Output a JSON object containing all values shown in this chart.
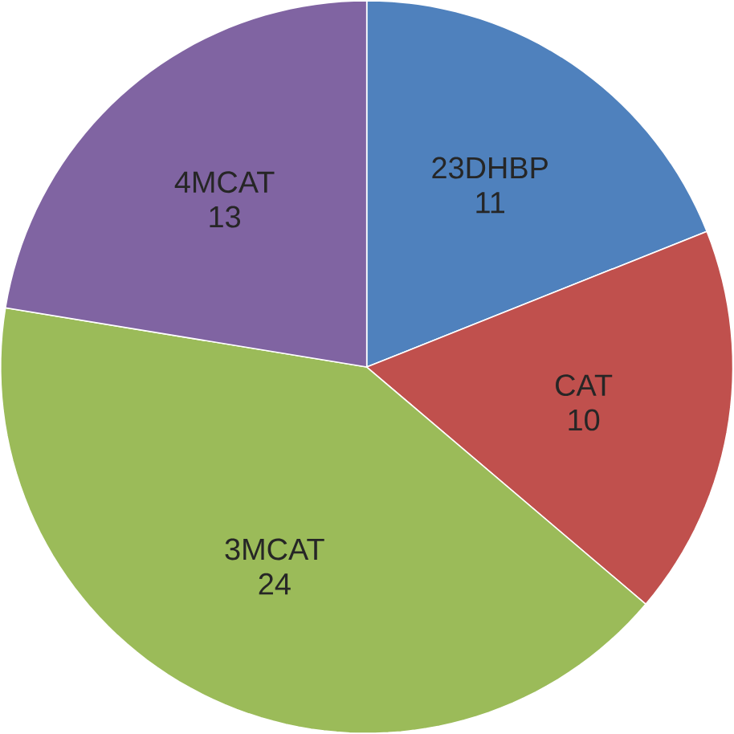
{
  "chart_data": {
    "type": "pie",
    "categories": [
      "23DHBP",
      "CAT",
      "3MCAT",
      "4MCAT"
    ],
    "values": [
      11,
      10,
      24,
      13
    ],
    "colors": [
      "#4f81bd",
      "#c0504d",
      "#9bbb59",
      "#8064a2"
    ],
    "data_labels": true
  }
}
